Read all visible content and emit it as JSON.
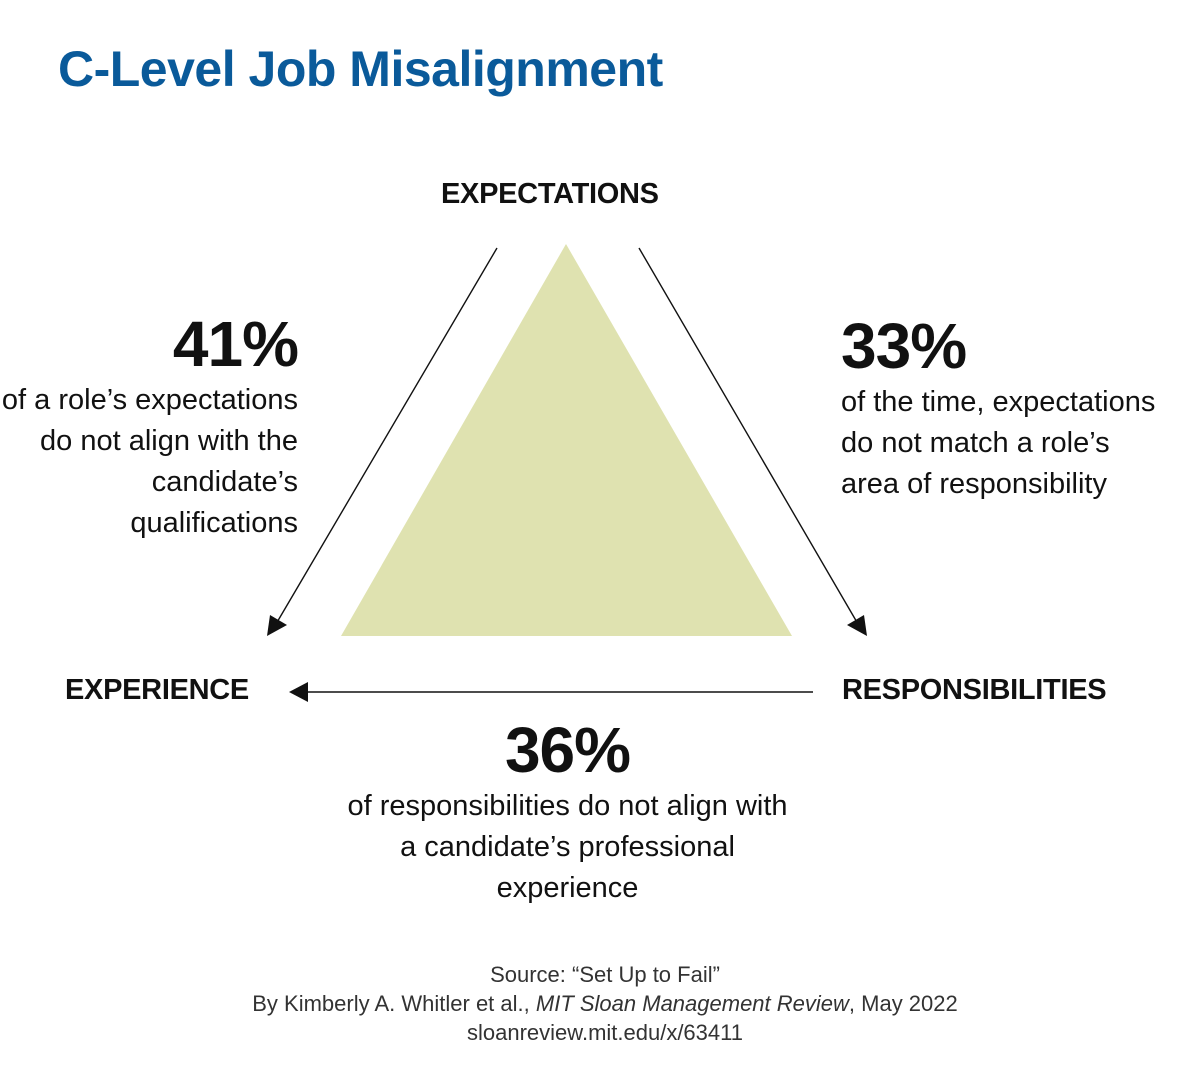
{
  "title": "C-Level Job Misalignment",
  "colors": {
    "title": "#0a5a9a",
    "triangle_fill": "#dfe2b0",
    "text": "#111111",
    "arrow": "#111111"
  },
  "nodes": {
    "top": "EXPECTATIONS",
    "left": "EXPERIENCE",
    "right": "RESPONSIBILITIES"
  },
  "stats": {
    "left": {
      "value": "41%",
      "text": "of a role’s expectations do not align with the candidate’s qualifications"
    },
    "right": {
      "value": "33%",
      "text": "of the time, expectations do not match a role’s area of responsibility"
    },
    "bottom": {
      "value": "36%",
      "text": "of responsibilities do not align with a candidate’s professional experience"
    }
  },
  "source": {
    "line1": "Source: “Set Up to Fail”",
    "line2_prefix": "By Kimberly A. Whitler et al., ",
    "line2_publication": "MIT Sloan Management Review",
    "line2_suffix": ", May 2022",
    "line3": "sloanreview.mit.edu/x/63411"
  }
}
